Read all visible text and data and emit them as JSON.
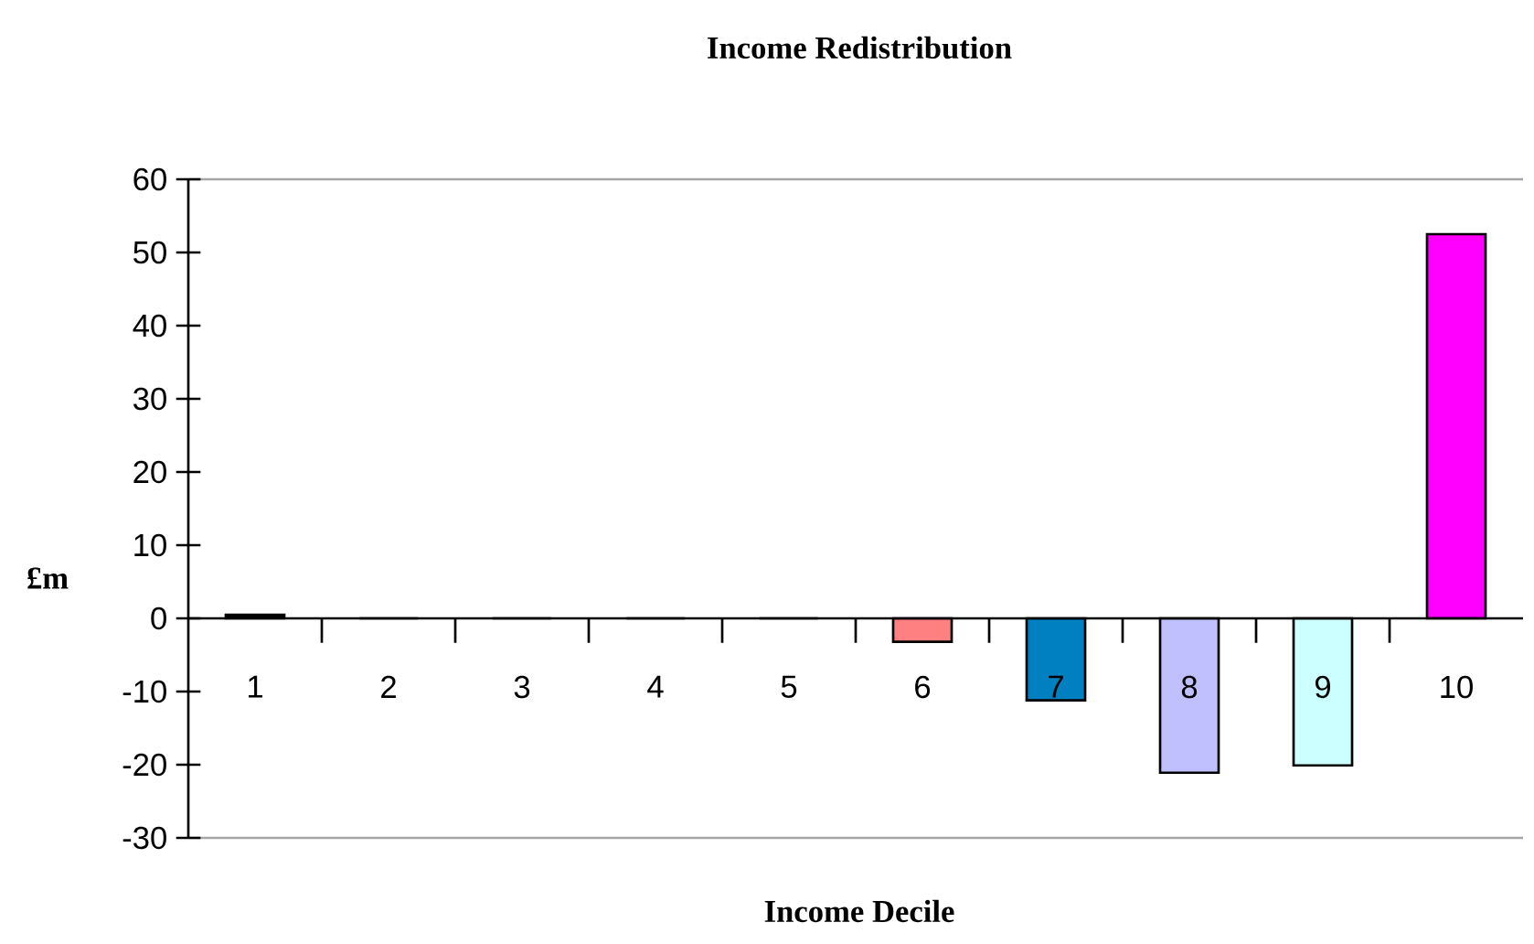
{
  "chart_data": {
    "type": "bar",
    "title": "Income Redistribution",
    "xlabel": "Income Decile",
    "ylabel": "£m",
    "categories": [
      "1",
      "2",
      "3",
      "4",
      "5",
      "6",
      "7",
      "8",
      "9",
      "10"
    ],
    "values": [
      0.5,
      0,
      0,
      0,
      0,
      -3.2,
      -11.2,
      -21.1,
      -20.1,
      52.5
    ],
    "colors": [
      "#000000",
      "#000000",
      "#000000",
      "#000000",
      "#000000",
      "#ff8080",
      "#0080c0",
      "#c0c0ff",
      "#ccffff",
      "#ff00ff"
    ],
    "ylim": [
      -30,
      60
    ],
    "yticks": [
      -30,
      -20,
      -10,
      0,
      10,
      20,
      30,
      40,
      50,
      60
    ],
    "grid": false
  }
}
